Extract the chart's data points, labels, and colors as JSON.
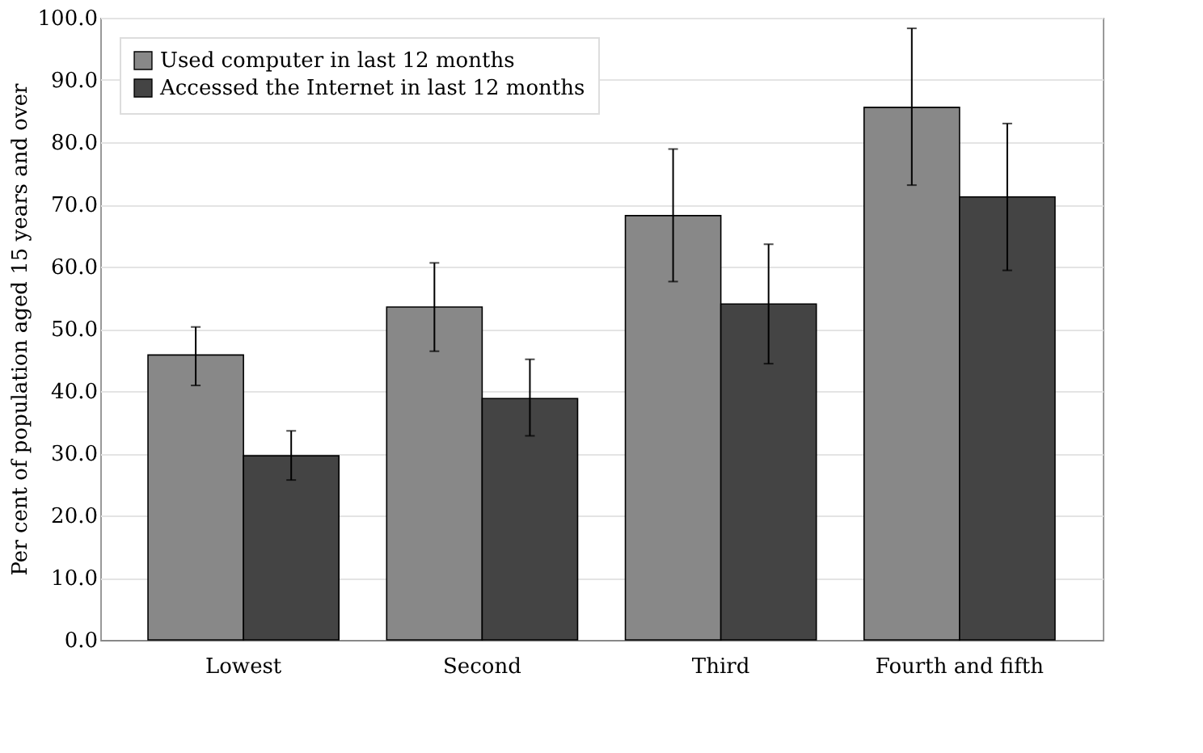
{
  "chart_data": {
    "type": "bar",
    "ylabel": "Per cent of population aged 15 years and over",
    "categories": [
      "Lowest",
      "Second",
      "Third",
      "Fourth and fifth"
    ],
    "series": [
      {
        "name": "Used computer in last 12 months",
        "color": "#888888",
        "values": [
          45.8,
          53.5,
          68.2,
          85.6
        ],
        "errors": [
          [
            40.9,
            50.3
          ],
          [
            46.4,
            60.6
          ],
          [
            57.6,
            78.9
          ],
          [
            73.1,
            98.3
          ]
        ]
      },
      {
        "name": "Accessed the Internet in last 12 months",
        "color": "#444444",
        "values": [
          29.6,
          38.8,
          54.0,
          71.2
        ],
        "errors": [
          [
            25.7,
            33.6
          ],
          [
            32.8,
            45.1
          ],
          [
            44.4,
            63.6
          ],
          [
            59.4,
            83.0
          ]
        ]
      }
    ],
    "ylim": [
      0,
      100
    ],
    "yticks": [
      {
        "value": 0,
        "label": "0.0"
      },
      {
        "value": 10,
        "label": "10.0"
      },
      {
        "value": 20,
        "label": "20.0"
      },
      {
        "value": 30,
        "label": "30.0"
      },
      {
        "value": 40,
        "label": "40.0"
      },
      {
        "value": 50,
        "label": "50.0"
      },
      {
        "value": 60,
        "label": "60.0"
      },
      {
        "value": 70,
        "label": "70.0"
      },
      {
        "value": 80,
        "label": "80.0"
      },
      {
        "value": 90,
        "label": "90.0"
      },
      {
        "value": 100,
        "label": "100.0"
      }
    ],
    "grid": "y",
    "legend": "top left"
  }
}
